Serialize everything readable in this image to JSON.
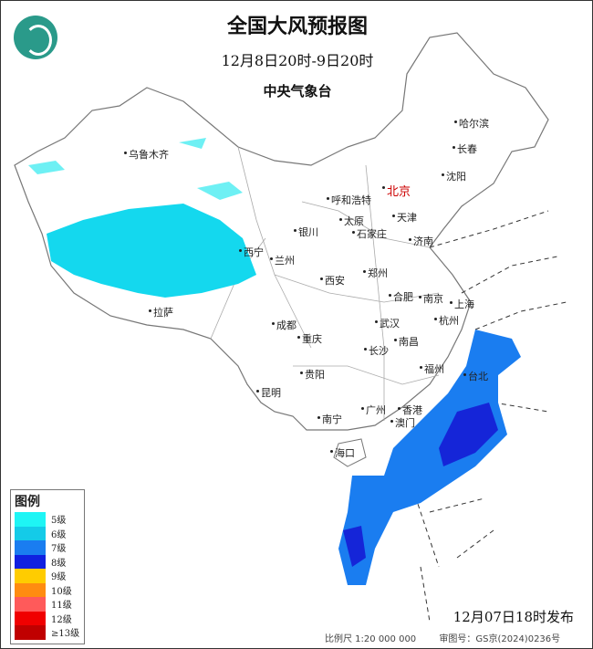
{
  "header": {
    "title": "全国大风预报图",
    "subtitle": "12月8日20时-9日20时",
    "agency": "中央气象台"
  },
  "logo": {
    "icon": "cma-logo-icon"
  },
  "cities": [
    {
      "name": "乌鲁木齐",
      "capital": false
    },
    {
      "name": "哈尔滨",
      "capital": false
    },
    {
      "name": "长春",
      "capital": false
    },
    {
      "name": "沈阳",
      "capital": false
    },
    {
      "name": "呼和浩特",
      "capital": false
    },
    {
      "name": "北京",
      "capital": true
    },
    {
      "name": "天津",
      "capital": false
    },
    {
      "name": "银川",
      "capital": false
    },
    {
      "name": "太原",
      "capital": false
    },
    {
      "name": "石家庄",
      "capital": false
    },
    {
      "name": "济南",
      "capital": false
    },
    {
      "name": "西宁",
      "capital": false
    },
    {
      "name": "兰州",
      "capital": false
    },
    {
      "name": "郑州",
      "capital": false
    },
    {
      "name": "西安",
      "capital": false
    },
    {
      "name": "合肥",
      "capital": false
    },
    {
      "name": "南京",
      "capital": false
    },
    {
      "name": "上海",
      "capital": false
    },
    {
      "name": "拉萨",
      "capital": false
    },
    {
      "name": "成都",
      "capital": false
    },
    {
      "name": "武汉",
      "capital": false
    },
    {
      "name": "杭州",
      "capital": false
    },
    {
      "name": "重庆",
      "capital": false
    },
    {
      "name": "长沙",
      "capital": false
    },
    {
      "name": "南昌",
      "capital": false
    },
    {
      "name": "福州",
      "capital": false
    },
    {
      "name": "台北",
      "capital": false
    },
    {
      "name": "贵阳",
      "capital": false
    },
    {
      "name": "昆明",
      "capital": false
    },
    {
      "name": "广州",
      "capital": false
    },
    {
      "name": "香港",
      "capital": false
    },
    {
      "name": "澳门",
      "capital": false
    },
    {
      "name": "南宁",
      "capital": false
    },
    {
      "name": "海口",
      "capital": false
    }
  ],
  "legend": {
    "title": "图例",
    "items": [
      {
        "label": "5级",
        "color": "#1ef5f5"
      },
      {
        "label": "6级",
        "color": "#14cbe8"
      },
      {
        "label": "7级",
        "color": "#1a7df0"
      },
      {
        "label": "8级",
        "color": "#1020e0"
      },
      {
        "label": "9级",
        "color": "#ffcc00"
      },
      {
        "label": "10级",
        "color": "#ff8c10"
      },
      {
        "label": "11级",
        "color": "#ff5a5a"
      },
      {
        "label": "12级",
        "color": "#f00000"
      },
      {
        "label": "≥13级",
        "color": "#c00000"
      }
    ]
  },
  "forecast_areas": [
    {
      "region": "Xinjiang/Tibet plateau",
      "level": "6级"
    },
    {
      "region": "East China Sea / Taiwan Strait / South China Sea",
      "level": "7级"
    },
    {
      "region": "Taiwan Strait / Bashi Channel",
      "level": "8级"
    }
  ],
  "issued": "12月07日18时发布",
  "footer": {
    "scale": "比例尺 1:20 000 000",
    "map_number": "审图号：GS京(2024)0236号"
  }
}
